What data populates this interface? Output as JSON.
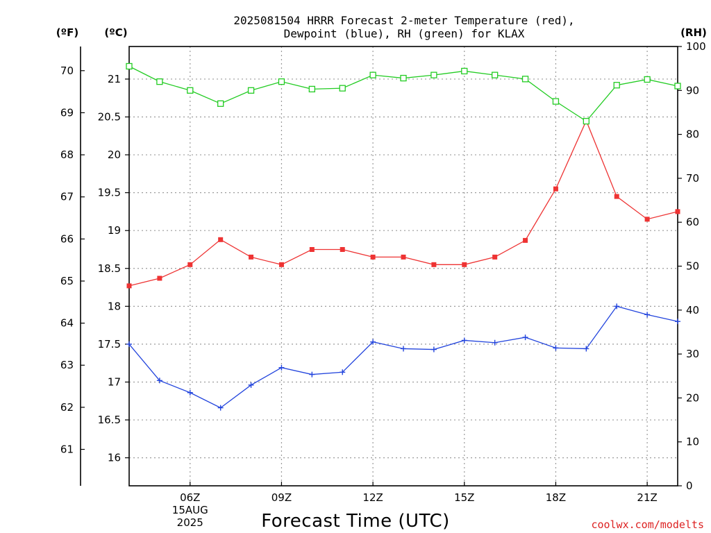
{
  "chart_data": {
    "type": "line",
    "title_line1": "2025081504 HRRR Forecast 2-meter Temperature (red),",
    "title_line2": "Dewpoint (blue), RH (green) for KLAX",
    "xlabel": "Forecast Time (UTC)",
    "credit": "coolwx.com/modelts",
    "unit_f": "(ºF)",
    "unit_c": "(ºC)",
    "unit_rh": "(RH)",
    "x_hours": [
      4,
      5,
      6,
      7,
      8,
      9,
      10,
      11,
      12,
      13,
      14,
      15,
      16,
      17,
      18,
      19,
      20,
      21,
      22
    ],
    "x_ticks": [
      {
        "hour": 6,
        "label": "06Z",
        "sub1": "15AUG",
        "sub2": "2025"
      },
      {
        "hour": 9,
        "label": "09Z",
        "sub1": "",
        "sub2": ""
      },
      {
        "hour": 12,
        "label": "12Z",
        "sub1": "",
        "sub2": ""
      },
      {
        "hour": 15,
        "label": "15Z",
        "sub1": "",
        "sub2": ""
      },
      {
        "hour": 18,
        "label": "18Z",
        "sub1": "",
        "sub2": ""
      },
      {
        "hour": 21,
        "label": "21Z",
        "sub1": "",
        "sub2": ""
      }
    ],
    "xlim": [
      4,
      22
    ],
    "celsius_ticks": [
      "16",
      "16.5",
      "17",
      "17.5",
      "18",
      "18.5",
      "19",
      "19.5",
      "20",
      "20.5",
      "21"
    ],
    "fahrenheit_ticks": [
      "61",
      "62",
      "63",
      "64",
      "65",
      "66",
      "67",
      "68",
      "69",
      "70"
    ],
    "rh_ticks": [
      "0",
      "10",
      "20",
      "30",
      "40",
      "50",
      "60",
      "70",
      "80",
      "90",
      "100"
    ],
    "celsius_ylim": [
      15.63,
      21.43
    ],
    "rh_ylim": [
      0,
      100
    ],
    "series": [
      {
        "key": "temperature",
        "color": "#ee3333",
        "marker": "filled-square",
        "unit": "C",
        "values": [
          18.27,
          18.37,
          18.55,
          18.88,
          18.65,
          18.55,
          18.75,
          18.75,
          18.65,
          18.65,
          18.55,
          18.55,
          18.65,
          18.87,
          19.55,
          20.45,
          19.45,
          19.15,
          19.25
        ]
      },
      {
        "key": "dewpoint",
        "color": "#2244dd",
        "marker": "plus",
        "unit": "C",
        "values": [
          17.5,
          17.02,
          16.86,
          16.66,
          16.96,
          17.19,
          17.1,
          17.13,
          17.53,
          17.44,
          17.43,
          17.55,
          17.52,
          17.59,
          17.45,
          17.44,
          18.0,
          17.89,
          17.8
        ]
      },
      {
        "key": "rh",
        "color": "#22cc22",
        "marker": "open-square",
        "unit": "%",
        "values": [
          95.5,
          92.0,
          90.0,
          87.0,
          90.0,
          92.0,
          90.3,
          90.5,
          93.5,
          92.8,
          93.5,
          94.4,
          93.5,
          92.6,
          87.5,
          83.0,
          91.2,
          92.5,
          91.0
        ]
      }
    ],
    "grid": true
  }
}
